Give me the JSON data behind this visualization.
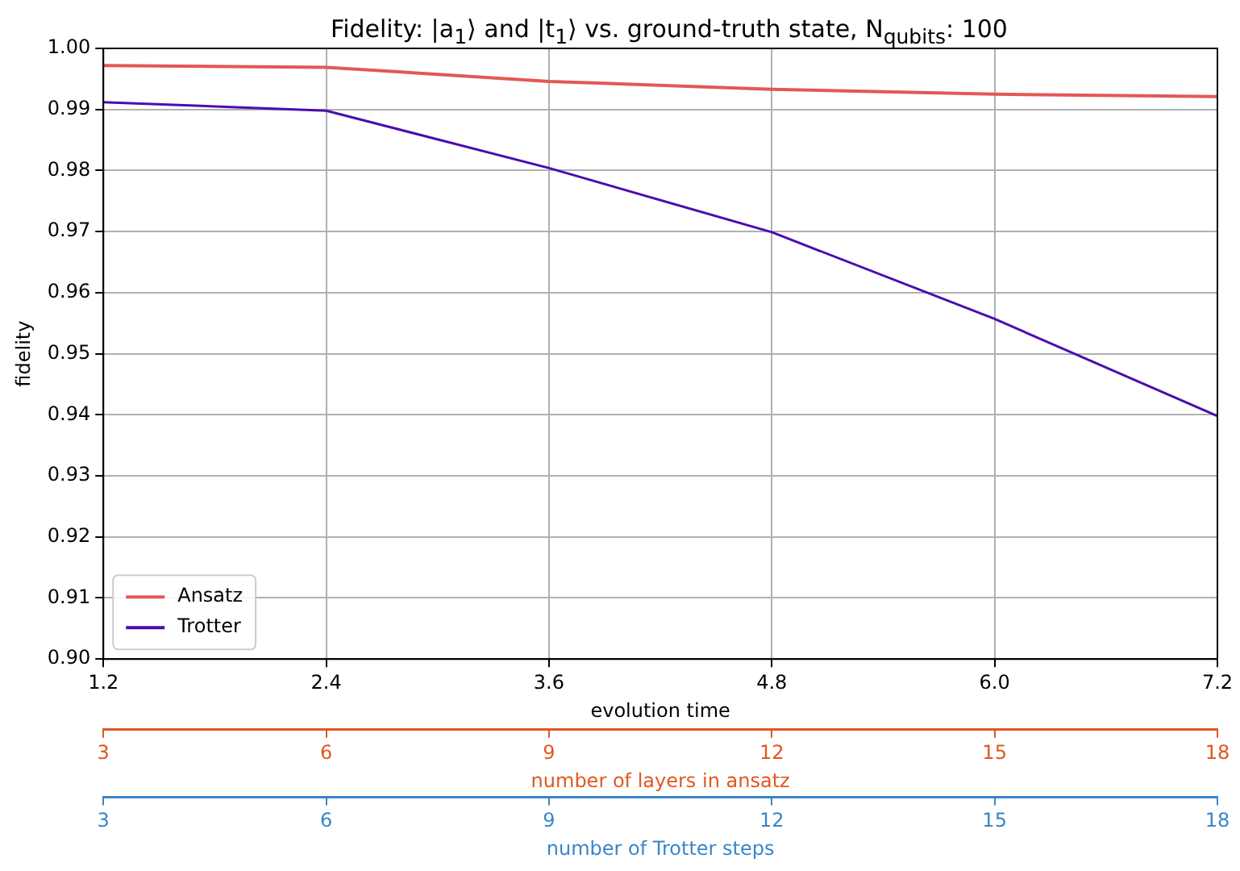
{
  "chart_data": {
    "type": "line",
    "title": "Fidelity: |a$_{1}$⟩ and |t$_{1}$⟩ vs. ground-truth state,  N$_{qubits}$: 100",
    "xlabel": "evolution time",
    "ylabel": "fidelity",
    "x2label": "number of layers in ansatz",
    "annotations": [
      "3",
      "6",
      "9",
      "12",
      "15",
      "18",
      "number of Trotter steps"
    ],
    "x": [
      1.2,
      2.4,
      3.6,
      4.8,
      6.0,
      7.2
    ],
    "series": [
      {
        "name": "Ansatz",
        "color": "#e45756",
        "values": [
          0.9972,
          0.9969,
          0.9946,
          0.9933,
          0.9925,
          0.9921
        ]
      },
      {
        "name": "Trotter",
        "color": "#4b0cb0",
        "values": [
          0.9912,
          0.9898,
          0.9804,
          0.9699,
          0.9557,
          0.9398
        ]
      }
    ],
    "xlim": [
      1.2,
      7.2
    ],
    "xticks": [
      1.2,
      2.4,
      3.6,
      4.8,
      {
        "value": 6,
        "label": "6.0"
      },
      7.2
    ],
    "ylim": [
      0.9,
      1.0
    ],
    "yticks": [
      {
        "value": 0.9,
        "label": "0.90"
      },
      0.91,
      0.92,
      0.93,
      0.94,
      0.95,
      0.96,
      0.97,
      0.98,
      0.99,
      {
        "value": 1.0,
        "label": "1.00"
      }
    ],
    "x2lim": [
      3,
      18
    ],
    "x2ticks": [
      3,
      6,
      9,
      12,
      15,
      18
    ],
    "grid": true,
    "legend": "bottom left"
  }
}
